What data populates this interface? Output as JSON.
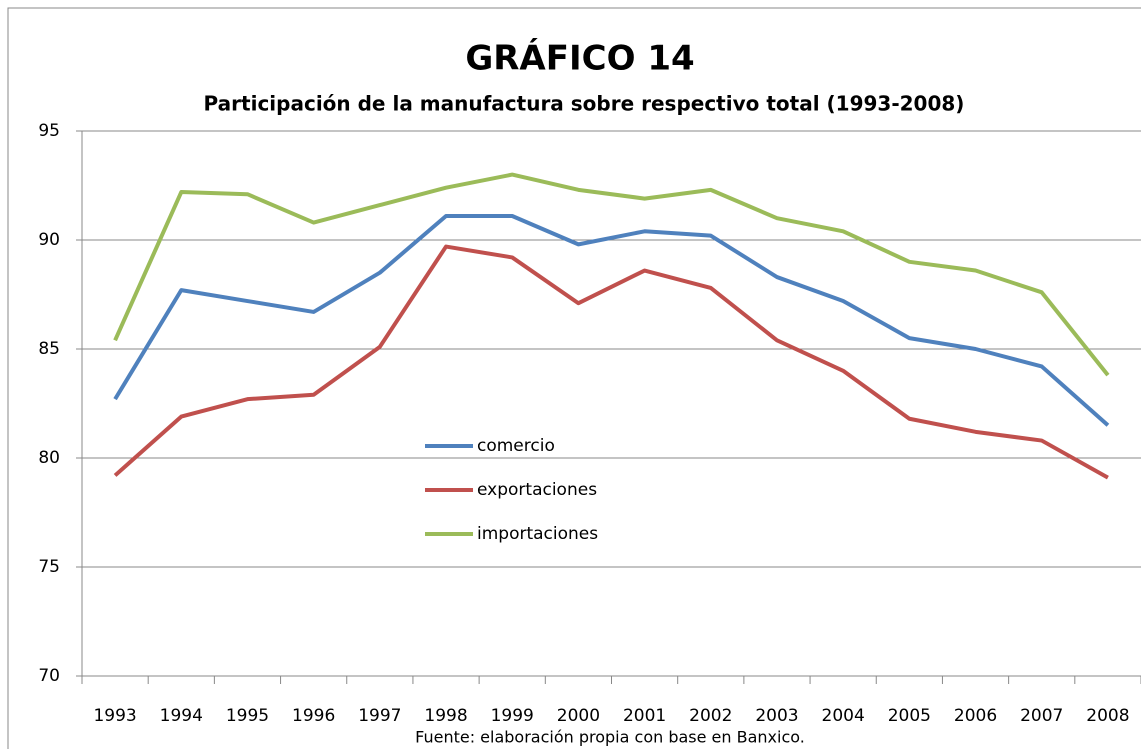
{
  "chart_data": {
    "type": "line",
    "title": "GRÁFICO 14",
    "subtitle": "Participación de la manufactura sobre respectivo total (1993-2008)",
    "source": "Fuente: elaboración propia con base en Banxico.",
    "categories": [
      "1993",
      "1994",
      "1995",
      "1996",
      "1997",
      "1998",
      "1999",
      "2000",
      "2001",
      "2002",
      "2003",
      "2004",
      "2005",
      "2006",
      "2007",
      "2008"
    ],
    "series": [
      {
        "name": "comercio",
        "color": "#4f81bd",
        "values": [
          82.7,
          87.7,
          87.2,
          86.7,
          88.5,
          91.1,
          91.1,
          89.8,
          90.4,
          90.2,
          88.3,
          87.2,
          85.5,
          85.0,
          84.2,
          81.5
        ]
      },
      {
        "name": "exportaciones",
        "color": "#c0504d",
        "values": [
          79.2,
          81.9,
          82.7,
          82.9,
          85.1,
          89.7,
          89.2,
          87.1,
          88.6,
          87.8,
          85.4,
          84.0,
          81.8,
          81.2,
          80.8,
          79.1
        ]
      },
      {
        "name": "importaciones",
        "color": "#9bbb59",
        "values": [
          85.4,
          92.2,
          92.1,
          90.8,
          91.6,
          92.4,
          93.0,
          92.3,
          91.9,
          92.3,
          91.0,
          90.4,
          89.0,
          88.6,
          87.6,
          83.8
        ]
      }
    ],
    "ylim": [
      70,
      95
    ],
    "yticks": [
      70,
      75,
      80,
      85,
      90,
      95
    ],
    "grid": true,
    "legend": "center"
  }
}
